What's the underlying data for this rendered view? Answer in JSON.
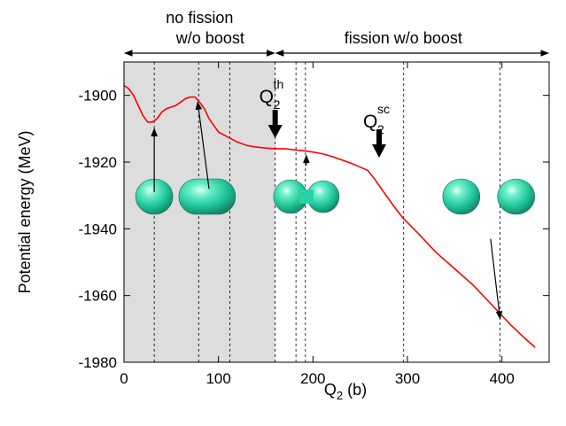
{
  "chart_data": {
    "type": "line",
    "xlabel": "Q",
    "xlabel_sub": "2",
    "xlabel_unit": " (b)",
    "ylabel": "Potential energy (MeV)",
    "xlim": [
      0,
      450
    ],
    "ylim": [
      -1980,
      -1890
    ],
    "xticks": [
      0,
      100,
      200,
      300,
      400
    ],
    "yticks": [
      -1900,
      -1920,
      -1940,
      -1960,
      -1980
    ],
    "tick_labels_x": [
      "0",
      "100",
      "200",
      "300",
      "400"
    ],
    "tick_labels_y": [
      "-1900",
      "-1920",
      "-1940",
      "-1960",
      "-1980"
    ],
    "series": [
      {
        "color": "#ff0000",
        "x": [
          0,
          5,
          10,
          15,
          20,
          25,
          30,
          35,
          40,
          45,
          50,
          55,
          60,
          65,
          70,
          75,
          80,
          85,
          90,
          95,
          100,
          110,
          120,
          130,
          140,
          150,
          160,
          170,
          180,
          190,
          200,
          210,
          220,
          230,
          240,
          250,
          258,
          265,
          275,
          285,
          295,
          310,
          330,
          350,
          370,
          390,
          410,
          425,
          435
        ],
        "y": [
          -1897,
          -1898,
          -1900,
          -1903,
          -1906,
          -1908,
          -1908,
          -1907,
          -1905,
          -1904,
          -1903.5,
          -1903,
          -1902,
          -1901,
          -1900.5,
          -1900.5,
          -1902,
          -1904,
          -1907,
          -1909,
          -1911,
          -1912.5,
          -1914,
          -1915,
          -1915.5,
          -1915.8,
          -1916,
          -1916,
          -1916.3,
          -1916.6,
          -1917,
          -1917.5,
          -1918.3,
          -1919.3,
          -1920.3,
          -1921.5,
          -1922.5,
          -1925,
          -1929,
          -1933,
          -1936.7,
          -1941,
          -1947,
          -1952,
          -1957,
          -1963,
          -1969,
          -1973,
          -1975.5
        ]
      }
    ],
    "shaded_region": {
      "x_from": 0,
      "x_to": 160,
      "color": "#dddddd"
    },
    "vertical_lines_x": [
      32,
      79,
      112,
      160,
      182,
      192,
      296,
      398
    ],
    "regions": [
      {
        "label_line1": "no fission",
        "label_line2": "w/o boost",
        "x_from": 0,
        "x_to": 160
      },
      {
        "label_line1": "fission w/o boost",
        "label_line2": "",
        "x_from": 160,
        "x_to": 450
      }
    ],
    "markers": [
      {
        "label": "Q",
        "sub": "2",
        "sup": "th",
        "x": 160
      },
      {
        "label": "Q",
        "sub": "2",
        "sup": "sc",
        "x": 270
      }
    ],
    "annotation_arrows": [
      {
        "x_from": 32,
        "y_from": -1929,
        "x_to": 32,
        "y_to": -1910
      },
      {
        "x_from": 90,
        "y_from": -1928,
        "x_to": 78,
        "y_to": -1902
      },
      {
        "x_from": 193,
        "y_from": -1921,
        "x_to": 193,
        "y_to": -1918
      },
      {
        "x_from": 388,
        "y_from": -1943,
        "x_to": 398,
        "y_to": -1967
      }
    ],
    "shapes": [
      {
        "type": "sphere",
        "x": 32
      },
      {
        "type": "elongated",
        "x": 88
      },
      {
        "type": "necked",
        "x": 193
      },
      {
        "type": "sphere",
        "x": 357
      },
      {
        "type": "sphere",
        "x": 415
      }
    ],
    "shape_color": "#2ed6ad",
    "grid": false,
    "legend": "none"
  }
}
